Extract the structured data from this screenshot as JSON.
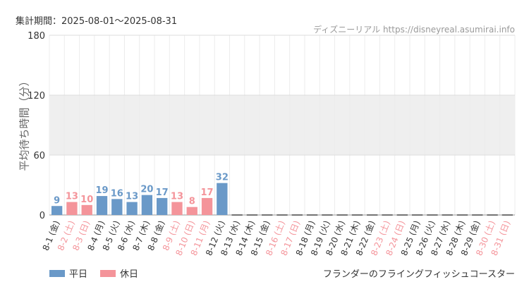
{
  "header": {
    "period": "集計期間：2025-08-01～2025-08-31",
    "credit": "ディズニーリアル https://disneyreal.asumirai.info"
  },
  "footer": {
    "attraction": "フランダーのフライングフィッシュコースター"
  },
  "colors": {
    "weekday": "#6a99c8",
    "holiday": "#f4949a",
    "band": "#efefef"
  },
  "chart_data": {
    "type": "bar",
    "ylabel": "平均待ち時間（分）",
    "ylim": [
      0,
      180
    ],
    "yticks": [
      0,
      60,
      120,
      180
    ],
    "categories": [
      "8-1 (金)",
      "8-2 (土)",
      "8-3 (日)",
      "8-4 (月)",
      "8-5 (火)",
      "8-6 (水)",
      "8-7 (木)",
      "8-8 (金)",
      "8-9 (土)",
      "8-10 (日)",
      "8-11 (月)",
      "8-12 (火)",
      "8-13 (水)",
      "8-14 (木)",
      "8-15 (金)",
      "8-16 (土)",
      "8-17 (日)",
      "8-18 (月)",
      "8-19 (火)",
      "8-20 (水)",
      "8-21 (木)",
      "8-22 (金)",
      "8-23 (土)",
      "8-24 (日)",
      "8-25 (月)",
      "8-26 (火)",
      "8-27 (水)",
      "8-28 (木)",
      "8-29 (金)",
      "8-30 (土)",
      "8-31 (日)"
    ],
    "values": [
      9,
      13,
      10,
      19,
      16,
      13,
      20,
      17,
      13,
      8,
      17,
      32,
      0,
      0,
      0,
      0,
      0,
      0,
      0,
      0,
      0,
      0,
      0,
      0,
      0,
      0,
      0,
      0,
      0,
      0,
      0
    ],
    "holiday": [
      false,
      true,
      true,
      false,
      false,
      false,
      false,
      false,
      true,
      true,
      true,
      false,
      false,
      false,
      false,
      true,
      true,
      false,
      false,
      false,
      false,
      false,
      true,
      true,
      false,
      false,
      false,
      false,
      false,
      true,
      true
    ],
    "has_data": [
      true,
      true,
      true,
      true,
      true,
      true,
      true,
      true,
      true,
      true,
      true,
      true,
      false,
      false,
      false,
      false,
      false,
      false,
      false,
      false,
      false,
      false,
      false,
      false,
      false,
      false,
      false,
      false,
      false,
      false,
      false
    ],
    "series": [
      {
        "name": "平日"
      },
      {
        "name": "休日"
      }
    ],
    "legend_position": "bottom-left",
    "grid": true
  }
}
